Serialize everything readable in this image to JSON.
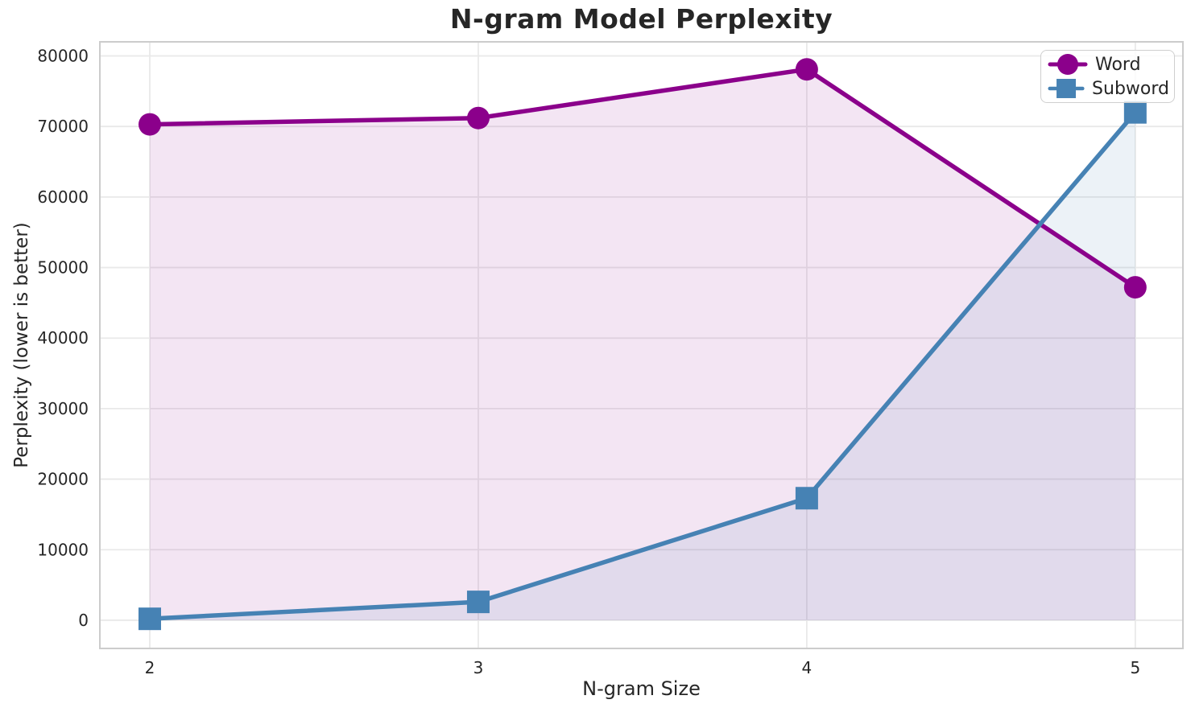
{
  "chart_data": {
    "type": "line",
    "title": "N-gram Model Perplexity",
    "xlabel": "N-gram Size",
    "ylabel": "Perplexity (lower is better)",
    "x": [
      2,
      3,
      4,
      5
    ],
    "xtick_labels": [
      "2",
      "3",
      "4",
      "5"
    ],
    "ytick_values": [
      0,
      10000,
      20000,
      30000,
      40000,
      50000,
      60000,
      70000,
      80000
    ],
    "ytick_labels": [
      "0",
      "10000",
      "20000",
      "30000",
      "40000",
      "50000",
      "60000",
      "70000",
      "80000"
    ],
    "xlim": [
      1.848,
      5.145
    ],
    "ylim": [
      -4000,
      82000
    ],
    "grid": true,
    "legend_position": "upper right",
    "fill_alpha": 0.1,
    "fill_to_zero": true,
    "series": [
      {
        "name": "Word",
        "color": "#8B008B",
        "marker": "circle",
        "values": [
          70300,
          71200,
          78100,
          47200
        ]
      },
      {
        "name": "Subword",
        "color": "#4682B4",
        "marker": "square",
        "values": [
          200,
          2600,
          17300,
          72000
        ]
      }
    ],
    "colors": {
      "text": "#262626",
      "grid": "#e9e9e9",
      "spine": "#cccccc",
      "background": "#ffffff"
    }
  }
}
